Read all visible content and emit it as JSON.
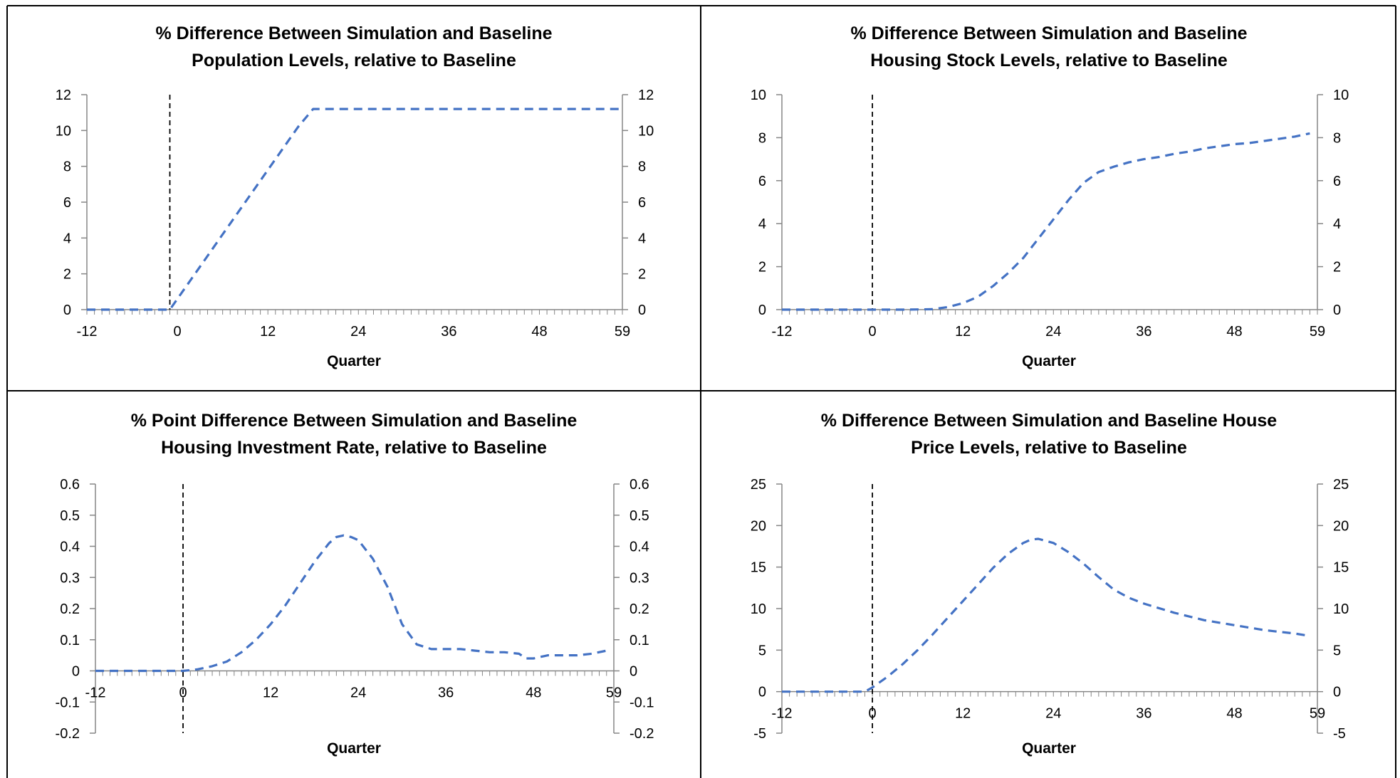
{
  "chart_data": [
    {
      "type": "line",
      "title_lines": [
        "% Difference Between Simulation and Baseline",
        "Population Levels, relative to Baseline"
      ],
      "xlabel": "Quarter",
      "ylabel": "",
      "xlim": [
        -12,
        59
      ],
      "x_tick_labels": [
        "-12",
        "0",
        "12",
        "24",
        "36",
        "48",
        "59"
      ],
      "x_tick_values": [
        -12,
        0,
        12,
        24,
        36,
        48,
        59
      ],
      "ylim": [
        0,
        12
      ],
      "y_ticks": [
        0,
        2,
        4,
        6,
        8,
        10,
        12
      ],
      "y_tick_labels": [
        "0",
        "2",
        "4",
        "6",
        "8",
        "10",
        "12"
      ],
      "dual_y_axis": true,
      "shock_marker_x": -1,
      "line_color": "#4472C4",
      "line_style": "dashed",
      "grid": false,
      "series": [
        {
          "x": [
            -12,
            -10,
            -8,
            -6,
            -4,
            -2,
            -1,
            0,
            2,
            4,
            6,
            8,
            10,
            12,
            14,
            16,
            18,
            19,
            24,
            30,
            36,
            42,
            48,
            54,
            59
          ],
          "values": [
            0,
            0,
            0,
            0,
            0,
            0,
            0,
            0.6,
            1.8,
            3.0,
            4.2,
            5.4,
            6.6,
            7.8,
            9.0,
            10.2,
            11.2,
            11.2,
            11.2,
            11.2,
            11.2,
            11.2,
            11.2,
            11.2,
            11.2
          ]
        }
      ]
    },
    {
      "type": "line",
      "title_lines": [
        "% Difference Between Simulation and Baseline",
        "Housing Stock Levels, relative to Baseline"
      ],
      "xlabel": "Quarter",
      "ylabel": "",
      "xlim": [
        -12,
        59
      ],
      "x_tick_labels": [
        "-12",
        "0",
        "12",
        "24",
        "36",
        "48",
        "59"
      ],
      "x_tick_values": [
        -12,
        0,
        12,
        24,
        36,
        48,
        59
      ],
      "ylim": [
        0,
        10
      ],
      "y_ticks": [
        0,
        2,
        4,
        6,
        8,
        10
      ],
      "y_tick_labels": [
        "0",
        "2",
        "4",
        "6",
        "8",
        "10"
      ],
      "dual_y_axis": true,
      "shock_marker_x": 0,
      "line_color": "#4472C4",
      "line_style": "dashed",
      "grid": false,
      "series": [
        {
          "x": [
            -12,
            -8,
            -4,
            0,
            4,
            8,
            10,
            12,
            14,
            16,
            18,
            20,
            22,
            24,
            26,
            28,
            30,
            32,
            34,
            36,
            38,
            40,
            42,
            44,
            46,
            48,
            50,
            52,
            54,
            56,
            58
          ],
          "values": [
            0,
            0,
            0,
            0,
            0,
            0.02,
            0.12,
            0.3,
            0.6,
            1.1,
            1.7,
            2.4,
            3.3,
            4.2,
            5.1,
            5.9,
            6.4,
            6.65,
            6.85,
            7.0,
            7.1,
            7.25,
            7.35,
            7.5,
            7.6,
            7.7,
            7.75,
            7.85,
            7.95,
            8.05,
            8.2
          ]
        }
      ]
    },
    {
      "type": "line",
      "title_lines": [
        "% Point Difference Between Simulation and Baseline",
        "Housing Investment Rate, relative to Baseline"
      ],
      "xlabel": "Quarter",
      "ylabel": "",
      "xlim": [
        -12,
        59
      ],
      "x_tick_labels": [
        "-12",
        "0",
        "12",
        "24",
        "36",
        "48",
        "59"
      ],
      "x_tick_values": [
        -12,
        0,
        12,
        24,
        36,
        48,
        59
      ],
      "ylim": [
        -0.2,
        0.6
      ],
      "y_ticks": [
        -0.2,
        -0.1,
        0,
        0.1,
        0.2,
        0.3,
        0.4,
        0.5,
        0.6
      ],
      "y_tick_labels": [
        "-0.2",
        "-0.1",
        "0",
        "0.1",
        "0.2",
        "0.3",
        "0.4",
        "0.5",
        "0.6"
      ],
      "dual_y_axis": true,
      "shock_marker_x": 0,
      "line_color": "#4472C4",
      "line_style": "dashed",
      "grid": false,
      "series": [
        {
          "x": [
            -12,
            -8,
            -4,
            -2,
            0,
            2,
            4,
            6,
            8,
            10,
            12,
            14,
            16,
            18,
            20,
            21,
            22,
            23,
            24,
            26,
            28,
            30,
            32,
            34,
            36,
            38,
            40,
            42,
            44,
            46,
            47,
            48,
            50,
            52,
            54,
            56,
            58
          ],
          "values": [
            0,
            0,
            0,
            0,
            0,
            0.005,
            0.015,
            0.03,
            0.06,
            0.1,
            0.15,
            0.21,
            0.28,
            0.35,
            0.41,
            0.43,
            0.435,
            0.43,
            0.42,
            0.36,
            0.27,
            0.15,
            0.085,
            0.07,
            0.07,
            0.07,
            0.065,
            0.06,
            0.06,
            0.055,
            0.04,
            0.04,
            0.05,
            0.05,
            0.05,
            0.055,
            0.065
          ]
        }
      ]
    },
    {
      "type": "line",
      "title_lines": [
        "% Difference Between Simulation and Baseline House",
        "Price Levels, relative to Baseline"
      ],
      "xlabel": "Quarter",
      "ylabel": "",
      "xlim": [
        -12,
        59
      ],
      "x_tick_labels": [
        "-12",
        "0",
        "12",
        "24",
        "36",
        "48",
        "59"
      ],
      "x_tick_values": [
        -12,
        0,
        12,
        24,
        36,
        48,
        59
      ],
      "ylim": [
        -5,
        25
      ],
      "y_ticks": [
        -5,
        0,
        5,
        10,
        15,
        20,
        25
      ],
      "y_tick_labels": [
        "-5",
        "0",
        "5",
        "10",
        "15",
        "20",
        "25"
      ],
      "dual_y_axis": true,
      "shock_marker_x": 0,
      "line_color": "#4472C4",
      "line_style": "dashed",
      "grid": false,
      "series": [
        {
          "x": [
            -12,
            -8,
            -4,
            -1,
            0,
            2,
            4,
            6,
            8,
            10,
            12,
            14,
            16,
            18,
            20,
            21,
            22,
            24,
            26,
            28,
            30,
            32,
            34,
            36,
            40,
            44,
            48,
            52,
            56,
            58
          ],
          "values": [
            0,
            0,
            0,
            0,
            0.5,
            1.8,
            3.3,
            5.0,
            6.9,
            8.9,
            10.9,
            12.9,
            14.9,
            16.6,
            17.9,
            18.3,
            18.4,
            17.9,
            16.8,
            15.4,
            13.8,
            12.3,
            11.3,
            10.6,
            9.5,
            8.6,
            8.0,
            7.4,
            7.0,
            6.7
          ]
        }
      ]
    }
  ]
}
